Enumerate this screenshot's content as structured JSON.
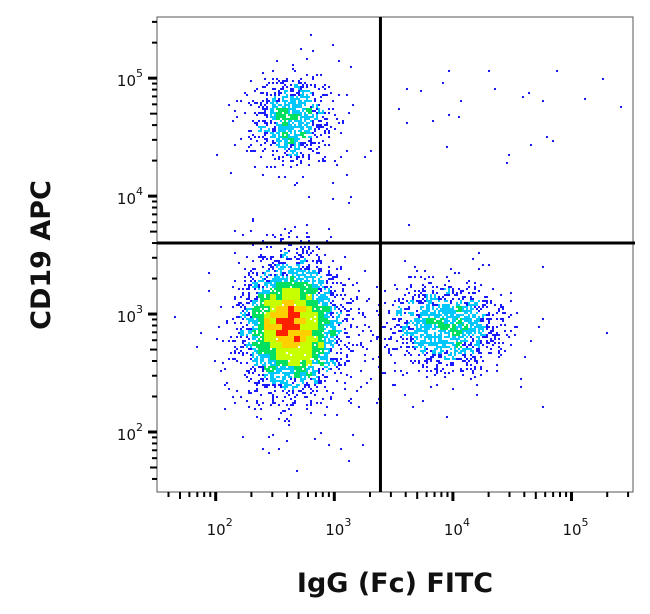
{
  "chart_data": {
    "type": "scatter",
    "subtype": "flow-cytometry-density-dot-plot",
    "xlabel": "IgG (Fc) FITC",
    "ylabel": "CD19 APC",
    "x_scale": "log",
    "y_scale": "log",
    "xlim": [
      32,
      330000
    ],
    "ylim": [
      31,
      330000
    ],
    "x_ticks": [
      {
        "value": 100,
        "base": "10",
        "exp": "2"
      },
      {
        "value": 1000,
        "base": "10",
        "exp": "3"
      },
      {
        "value": 10000,
        "base": "10",
        "exp": "4"
      },
      {
        "value": 100000,
        "base": "10",
        "exp": "5"
      }
    ],
    "y_ticks": [
      {
        "value": 100,
        "base": "10",
        "exp": "2"
      },
      {
        "value": 1000,
        "base": "10",
        "exp": "3"
      },
      {
        "value": 10000,
        "base": "10",
        "exp": "4"
      },
      {
        "value": 100000,
        "base": "10",
        "exp": "5"
      }
    ],
    "quadrant_gate": {
      "x": 2450,
      "y": 4000
    },
    "populations": [
      {
        "center_x": 420,
        "center_y": 800,
        "spread_log_x": 0.17,
        "spread_log_y": 0.24,
        "events": 6000
      },
      {
        "center_x": 8500,
        "center_y": 800,
        "spread_log_x": 0.22,
        "spread_log_y": 0.17,
        "events": 1500
      },
      {
        "center_x": 430,
        "center_y": 45000,
        "spread_log_x": 0.15,
        "spread_log_y": 0.17,
        "events": 1000
      },
      {
        "center_x": 20000,
        "center_y": 60000,
        "spread_log_x": 0.4,
        "spread_log_y": 0.25,
        "events": 25
      }
    ],
    "density_colors": [
      "#1a1aff",
      "#00c8ff",
      "#00e060",
      "#c8ff00",
      "#ffd000",
      "#ff2000"
    ],
    "grid": false,
    "legend": "none"
  }
}
